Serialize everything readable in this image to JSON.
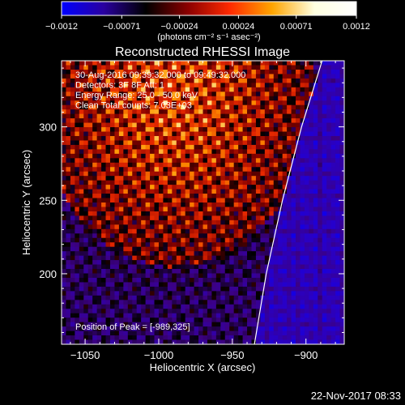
{
  "chart_data": {
    "type": "heatmap",
    "title": "Reconstructed RHESSI Image",
    "xlabel": "Heliocentric X (arcsec)",
    "ylabel": "Heliocentric Y (arcsec)",
    "xlim": [
      -1066,
      -874
    ],
    "ylim": [
      152,
      345
    ],
    "x_ticks": [
      {
        "value": -1050,
        "label": "−1050"
      },
      {
        "value": -1000,
        "label": "−1000"
      },
      {
        "value": -950,
        "label": "−950"
      },
      {
        "value": -900,
        "label": "−900"
      }
    ],
    "y_ticks": [
      {
        "value": 200,
        "label": "200"
      },
      {
        "value": 250,
        "label": "250"
      },
      {
        "value": 300,
        "label": "300"
      }
    ],
    "colorbar": {
      "min": -0.0012,
      "max": 0.0012,
      "ticks": [
        {
          "value": -0.0012,
          "label": "−0.0012"
        },
        {
          "value": -0.00071,
          "label": "−0.00071"
        },
        {
          "value": -0.00024,
          "label": "−0.00024"
        },
        {
          "value": 0.00024,
          "label": "0.00024"
        },
        {
          "value": 0.00071,
          "label": "0.00071"
        },
        {
          "value": 0.0012,
          "label": "0.0012"
        }
      ],
      "unit_label": "(photons cm⁻² s⁻¹ asec⁻²)",
      "colors": [
        "#0000ff",
        "#2a00a0",
        "#000000",
        "#8b0000",
        "#ff2a00",
        "#ffa500",
        "#ffffe0",
        "#ffffff"
      ]
    },
    "annotations": [
      "30-Aug-2016 09:39:32.000 to 09:49:32.000",
      "Detectors: 3F 8F  Att: 1",
      "Energy Range: 25.0 - 50.0 keV",
      "Clean      Total counts: 7.03E+03"
    ],
    "peak_label": "Position of Peak = [-989,325]",
    "limb": [
      {
        "x": -935,
        "y": 152
      },
      {
        "x": -927,
        "y": 200
      },
      {
        "x": -916,
        "y": 250
      },
      {
        "x": -903,
        "y": 300
      },
      {
        "x": -889,
        "y": 345
      }
    ],
    "peak": {
      "x": -989,
      "y": 325
    }
  },
  "footer_timestamp": "22-Nov-2017 08:33"
}
